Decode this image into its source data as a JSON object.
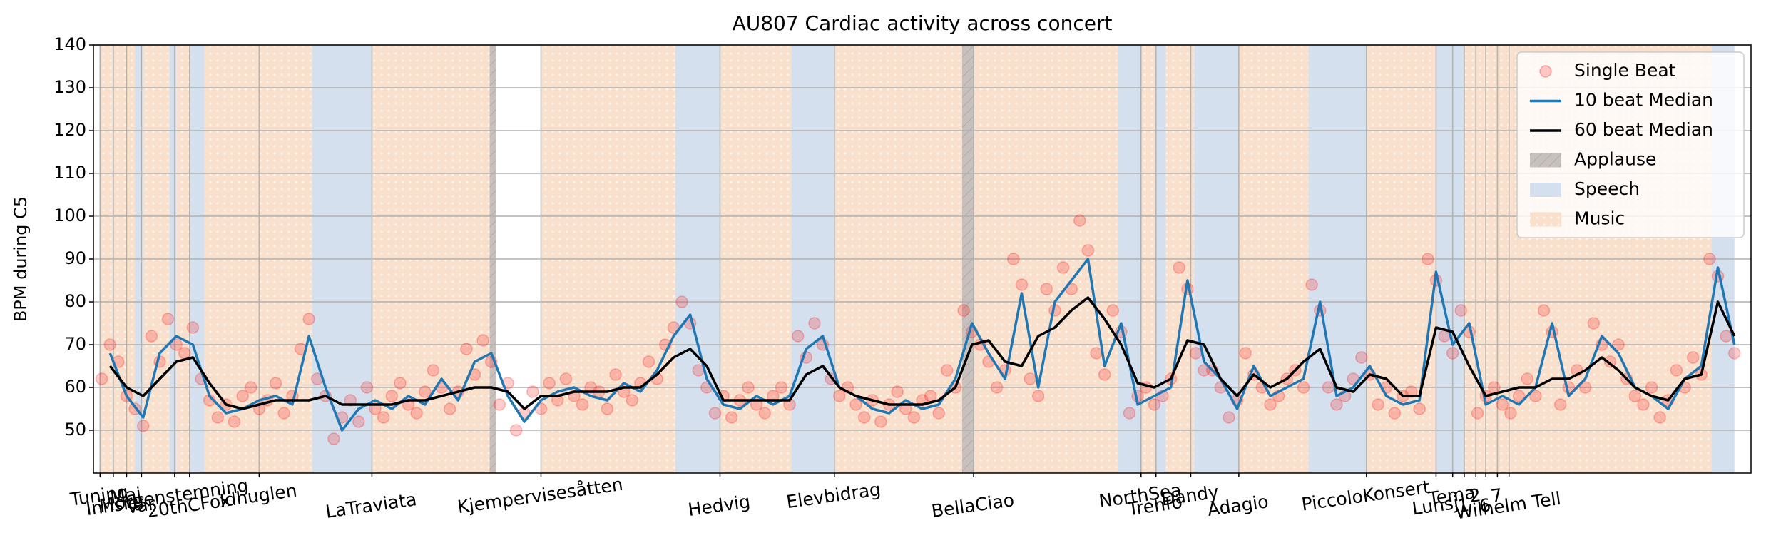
{
  "chart_data": {
    "type": "line",
    "title": "AU807 Cardiac activity across concert",
    "ylabel": "BPM during C5",
    "xlim": [
      0,
      1000
    ],
    "ylim": [
      40,
      140
    ],
    "yticks": [
      50,
      60,
      70,
      80,
      90,
      100,
      110,
      120,
      130,
      140
    ],
    "xticks": [
      {
        "value": 4,
        "label": "Tuning"
      },
      {
        "value": 12,
        "label": "Innsie"
      },
      {
        "value": 20,
        "label": "Maj"
      },
      {
        "value": 29,
        "label": "Vår"
      },
      {
        "value": 49,
        "label": "Morgenstemning"
      },
      {
        "value": 58,
        "label": "20thCFox"
      },
      {
        "value": 100,
        "label": "Idhuglen"
      },
      {
        "value": 168,
        "label": "LaTraviata"
      },
      {
        "value": 270,
        "label": "Kjempervisesåtten"
      },
      {
        "value": 378,
        "label": "Hedvig"
      },
      {
        "value": 447,
        "label": "Elevbidrag"
      },
      {
        "value": 531,
        "label": "BellaCiao"
      },
      {
        "value": 632,
        "label": "NorthSea"
      },
      {
        "value": 641,
        "label": "Trehfo"
      },
      {
        "value": 662,
        "label": "Dandy"
      },
      {
        "value": 691,
        "label": "Adagio"
      },
      {
        "value": 768,
        "label": "PiccoloKonsert"
      },
      {
        "value": 810,
        "label": "Lunsj"
      },
      {
        "value": 820,
        "label": "Tema"
      },
      {
        "value": 827,
        "label": "1"
      },
      {
        "value": 834,
        "label": "2"
      },
      {
        "value": 840,
        "label": "6"
      },
      {
        "value": 847,
        "label": "7"
      },
      {
        "value": 854,
        "label": "Wilhelm Tell"
      }
    ],
    "grid": true,
    "legend": "upper right",
    "x": [
      10,
      20,
      30,
      40,
      50,
      60,
      70,
      80,
      90,
      100,
      110,
      120,
      130,
      140,
      150,
      160,
      170,
      180,
      190,
      200,
      210,
      220,
      230,
      240,
      250,
      260,
      270,
      280,
      290,
      300,
      310,
      320,
      330,
      340,
      350,
      360,
      370,
      380,
      390,
      400,
      410,
      420,
      430,
      440,
      450,
      460,
      470,
      480,
      490,
      500,
      510,
      520,
      530,
      540,
      550,
      560,
      570,
      580,
      590,
      600,
      610,
      620,
      630,
      640,
      650,
      660,
      670,
      680,
      690,
      700,
      710,
      720,
      730,
      740,
      750,
      760,
      770,
      780,
      790,
      800,
      810,
      820,
      830,
      840,
      850,
      860,
      870,
      880,
      890,
      900,
      910,
      920,
      930,
      940,
      950,
      960,
      970,
      980,
      990
    ],
    "series": [
      {
        "name": "Single Beat",
        "type": "scatter",
        "color": "#ff0000",
        "x": [
          5,
          10,
          15,
          20,
          25,
          30,
          35,
          40,
          45,
          50,
          55,
          60,
          65,
          70,
          75,
          80,
          85,
          90,
          95,
          100,
          105,
          110,
          115,
          120,
          125,
          130,
          135,
          140,
          145,
          150,
          155,
          160,
          165,
          170,
          175,
          180,
          185,
          190,
          195,
          200,
          205,
          210,
          215,
          220,
          225,
          230,
          235,
          240,
          245,
          250,
          255,
          260,
          265,
          270,
          275,
          280,
          285,
          290,
          295,
          300,
          305,
          310,
          315,
          320,
          325,
          330,
          335,
          340,
          345,
          350,
          355,
          360,
          365,
          370,
          375,
          380,
          385,
          390,
          395,
          400,
          405,
          410,
          415,
          420,
          425,
          430,
          435,
          440,
          445,
          450,
          455,
          460,
          465,
          470,
          475,
          480,
          485,
          490,
          495,
          500,
          505,
          510,
          515,
          520,
          525,
          530,
          535,
          540,
          545,
          550,
          555,
          560,
          565,
          570,
          575,
          580,
          585,
          590,
          595,
          600,
          605,
          610,
          615,
          620,
          625,
          630,
          635,
          640,
          645,
          650,
          655,
          660,
          665,
          670,
          675,
          680,
          685,
          690,
          695,
          700,
          705,
          710,
          715,
          720,
          725,
          730,
          735,
          740,
          745,
          750,
          755,
          760,
          765,
          770,
          775,
          780,
          785,
          790,
          795,
          800,
          805,
          810,
          815,
          820,
          825,
          830,
          835,
          840,
          845,
          850,
          855,
          860,
          865,
          870,
          875,
          880,
          885,
          890,
          895,
          900,
          905,
          910,
          915,
          920,
          925,
          930,
          935,
          940,
          945,
          950,
          955,
          960,
          965,
          970,
          975,
          980,
          985,
          990
        ],
        "values": [
          62,
          70,
          66,
          58,
          55,
          51,
          72,
          66,
          76,
          70,
          68,
          74,
          62,
          57,
          53,
          56,
          52,
          58,
          60,
          55,
          57,
          61,
          54,
          58,
          69,
          76,
          62,
          58,
          48,
          53,
          57,
          52,
          60,
          55,
          53,
          58,
          61,
          56,
          54,
          59,
          64,
          60,
          55,
          59,
          69,
          63,
          71,
          66,
          56,
          61,
          50,
          54,
          59,
          55,
          61,
          57,
          62,
          58,
          56,
          60,
          59,
          55,
          63,
          59,
          57,
          61,
          66,
          62,
          70,
          74,
          80,
          75,
          64,
          60,
          54,
          58,
          53,
          57,
          60,
          56,
          54,
          58,
          60,
          56,
          72,
          67,
          75,
          70,
          62,
          58,
          60,
          56,
          53,
          57,
          52,
          56,
          59,
          55,
          53,
          57,
          58,
          54,
          64,
          60,
          78,
          73,
          70,
          66,
          60,
          64,
          90,
          84,
          62,
          58,
          83,
          78,
          88,
          83,
          99,
          92,
          68,
          63,
          78,
          73,
          54,
          58,
          60,
          56,
          58,
          62,
          88,
          83,
          68,
          64,
          64,
          60,
          53,
          57,
          68,
          63,
          60,
          56,
          58,
          62,
          64,
          60,
          84,
          78,
          60,
          56,
          58,
          62,
          67,
          63,
          56,
          60,
          54,
          58,
          59,
          55,
          90,
          85,
          72,
          68,
          78,
          73,
          54,
          58,
          60,
          56,
          54,
          58,
          62,
          58,
          78,
          73,
          56,
          60,
          64,
          60,
          75,
          70,
          66,
          70,
          62,
          58,
          56,
          60,
          53,
          57,
          64,
          60,
          67,
          63,
          90,
          86,
          72,
          68
        ]
      },
      {
        "name": "10 beat Median",
        "type": "line",
        "color": "#1f77b4",
        "values": [
          68,
          58,
          53,
          68,
          72,
          70,
          58,
          54,
          55,
          57,
          58,
          56,
          72,
          60,
          50,
          55,
          57,
          55,
          58,
          56,
          62,
          57,
          66,
          68,
          58,
          52,
          57,
          59,
          60,
          58,
          57,
          61,
          59,
          64,
          72,
          77,
          62,
          56,
          55,
          58,
          56,
          58,
          69,
          72,
          60,
          58,
          55,
          54,
          57,
          55,
          56,
          62,
          75,
          68,
          62,
          82,
          60,
          80,
          85,
          90,
          65,
          75,
          56,
          58,
          60,
          85,
          66,
          62,
          55,
          65,
          58,
          60,
          62,
          80,
          58,
          60,
          65,
          58,
          56,
          57,
          87,
          70,
          75,
          56,
          58,
          56,
          60,
          75,
          58,
          62,
          72,
          68,
          60,
          58,
          55,
          62,
          65,
          88,
          70
        ]
      },
      {
        "name": "60 beat Median",
        "type": "line",
        "color": "#000000",
        "values": [
          65,
          60,
          58,
          62,
          66,
          67,
          61,
          56,
          55,
          56,
          57,
          57,
          57,
          58,
          56,
          56,
          56,
          56,
          57,
          57,
          58,
          59,
          60,
          60,
          59,
          55,
          58,
          58,
          59,
          59,
          59,
          60,
          60,
          63,
          67,
          69,
          65,
          57,
          57,
          57,
          57,
          57,
          63,
          65,
          60,
          58,
          57,
          56,
          56,
          56,
          57,
          60,
          70,
          71,
          66,
          65,
          72,
          74,
          78,
          81,
          76,
          70,
          61,
          60,
          62,
          71,
          70,
          62,
          58,
          63,
          60,
          62,
          66,
          69,
          60,
          59,
          63,
          62,
          58,
          58,
          74,
          73,
          65,
          58,
          59,
          60,
          60,
          62,
          62,
          64,
          67,
          64,
          60,
          58,
          57,
          62,
          63,
          80,
          72
        ]
      },
      {
        "name": "Applause",
        "type": "span",
        "color": "#c8c0bc",
        "spans": [
          [
            239,
            243
          ],
          [
            524,
            531
          ]
        ]
      },
      {
        "name": "Speech",
        "type": "span",
        "color": "#d5e0ee",
        "spans": [
          [
            25,
            30
          ],
          [
            46,
            50
          ],
          [
            58,
            67
          ],
          [
            132,
            168
          ],
          [
            351,
            378
          ],
          [
            421,
            447
          ],
          [
            618,
            632
          ],
          [
            641,
            647
          ],
          [
            664,
            691
          ],
          [
            733,
            768
          ],
          [
            810,
            827
          ],
          [
            976,
            990
          ]
        ]
      },
      {
        "name": "Music",
        "type": "span",
        "color": "#f8e0cd",
        "spans": [
          [
            4,
            25
          ],
          [
            30,
            46
          ],
          [
            50,
            58
          ],
          [
            67,
            132
          ],
          [
            168,
            239
          ],
          [
            270,
            351
          ],
          [
            378,
            421
          ],
          [
            447,
            524
          ],
          [
            531,
            618
          ],
          [
            632,
            641
          ],
          [
            647,
            664
          ],
          [
            691,
            733
          ],
          [
            768,
            810
          ],
          [
            827,
            976
          ]
        ]
      }
    ]
  }
}
